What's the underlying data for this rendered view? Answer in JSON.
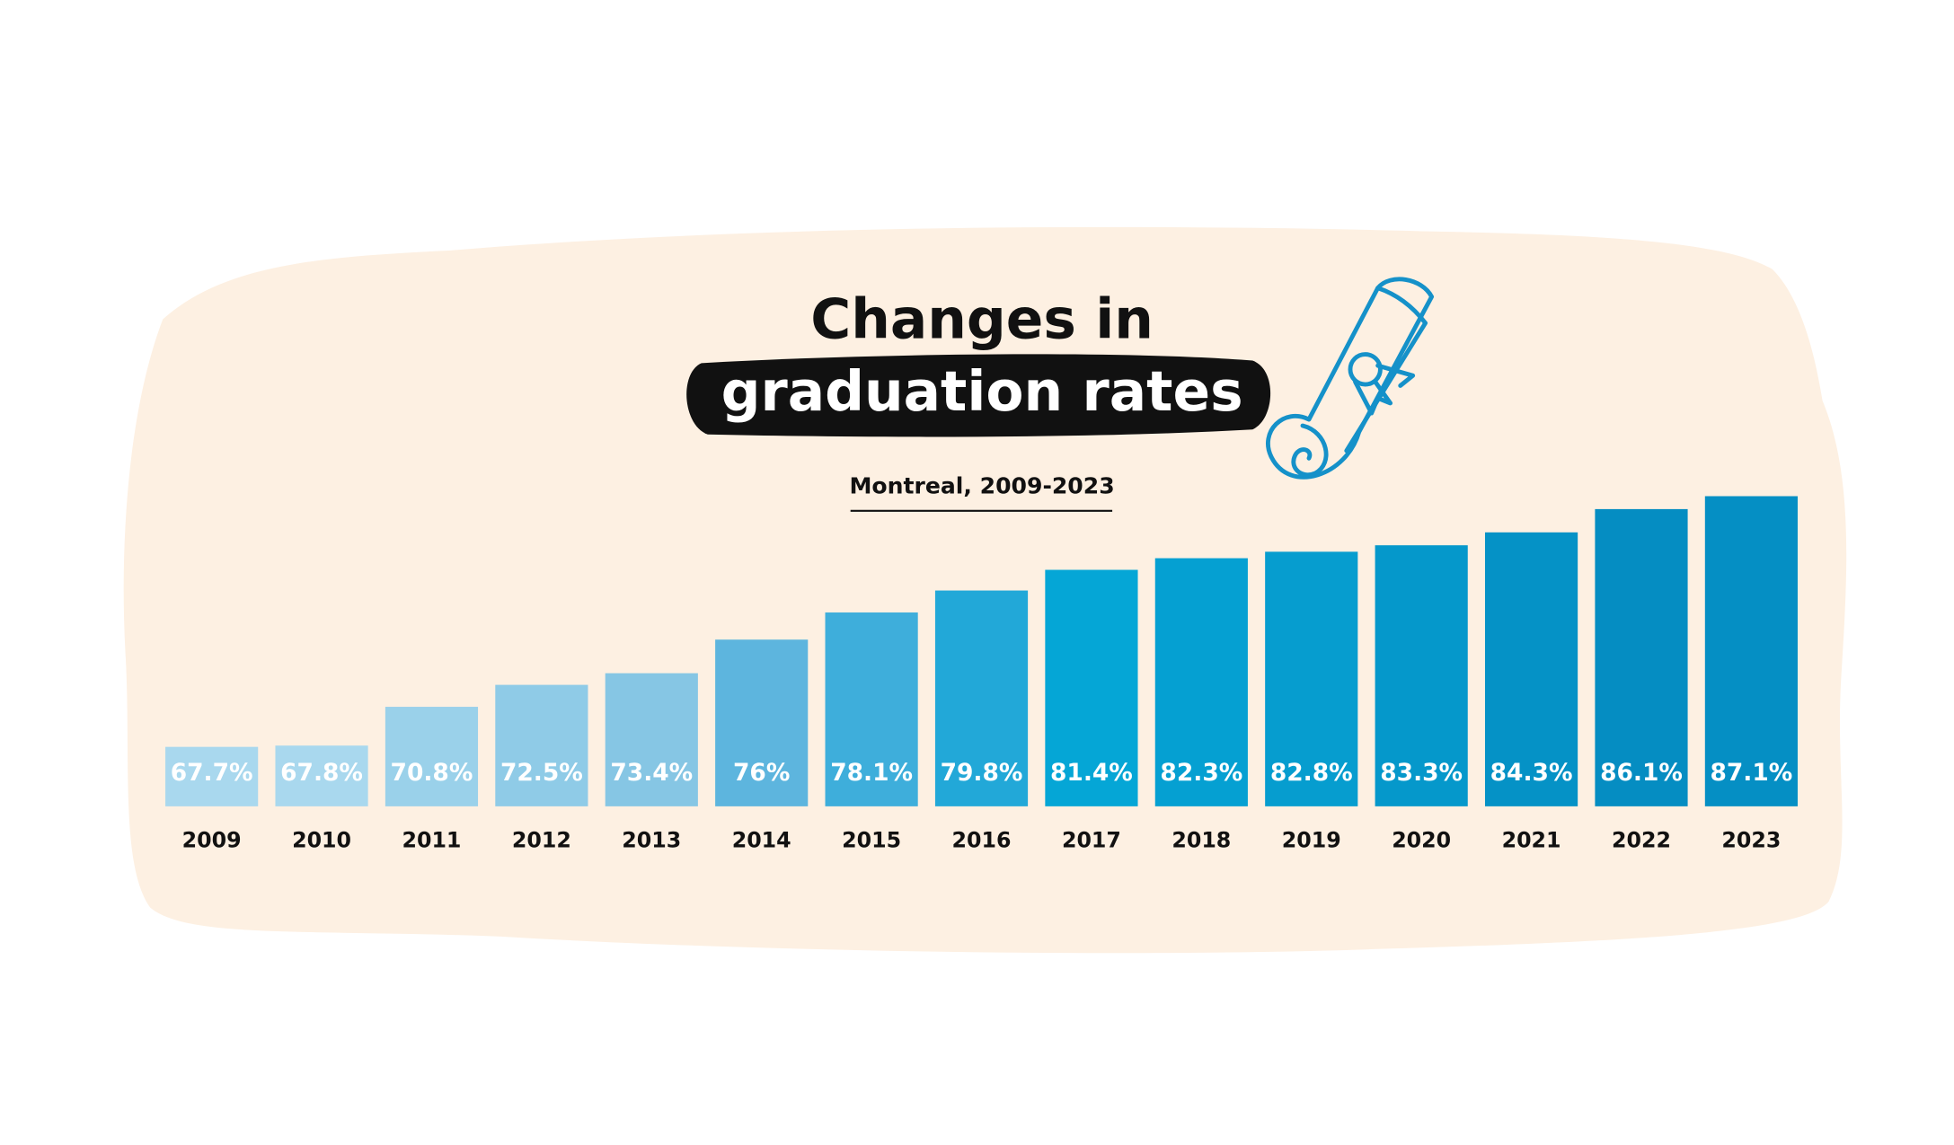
{
  "chart_data": {
    "type": "bar",
    "title": "Changes in",
    "title_highlight": "graduation rates",
    "subtitle": "Montreal, 2009-2023",
    "categories": [
      "2009",
      "2010",
      "2011",
      "2012",
      "2013",
      "2014",
      "2015",
      "2016",
      "2017",
      "2018",
      "2019",
      "2020",
      "2021",
      "2022",
      "2023"
    ],
    "values": [
      67.7,
      67.8,
      70.8,
      72.5,
      73.4,
      76,
      78.1,
      79.8,
      81.4,
      82.3,
      82.8,
      83.3,
      84.3,
      86.1,
      87.1
    ],
    "value_labels": [
      "67.7%",
      "67.8%",
      "70.8%",
      "72.5%",
      "73.4%",
      "76%",
      "78.1%",
      "79.8%",
      "81.4%",
      "82.3%",
      "82.8%",
      "83.3%",
      "84.3%",
      "86.1%",
      "87.1%"
    ],
    "colors": [
      "#a9d8ee",
      "#a9d8ee",
      "#9ad1ea",
      "#8fcbe7",
      "#86c6e4",
      "#5db5de",
      "#3eaedb",
      "#22a8d8",
      "#05a6d6",
      "#05a0d2",
      "#069dcf",
      "#0598cb",
      "#0592c6",
      "#058dc2",
      "#058fc4"
    ],
    "ylim": [
      63.1,
      88
    ]
  }
}
